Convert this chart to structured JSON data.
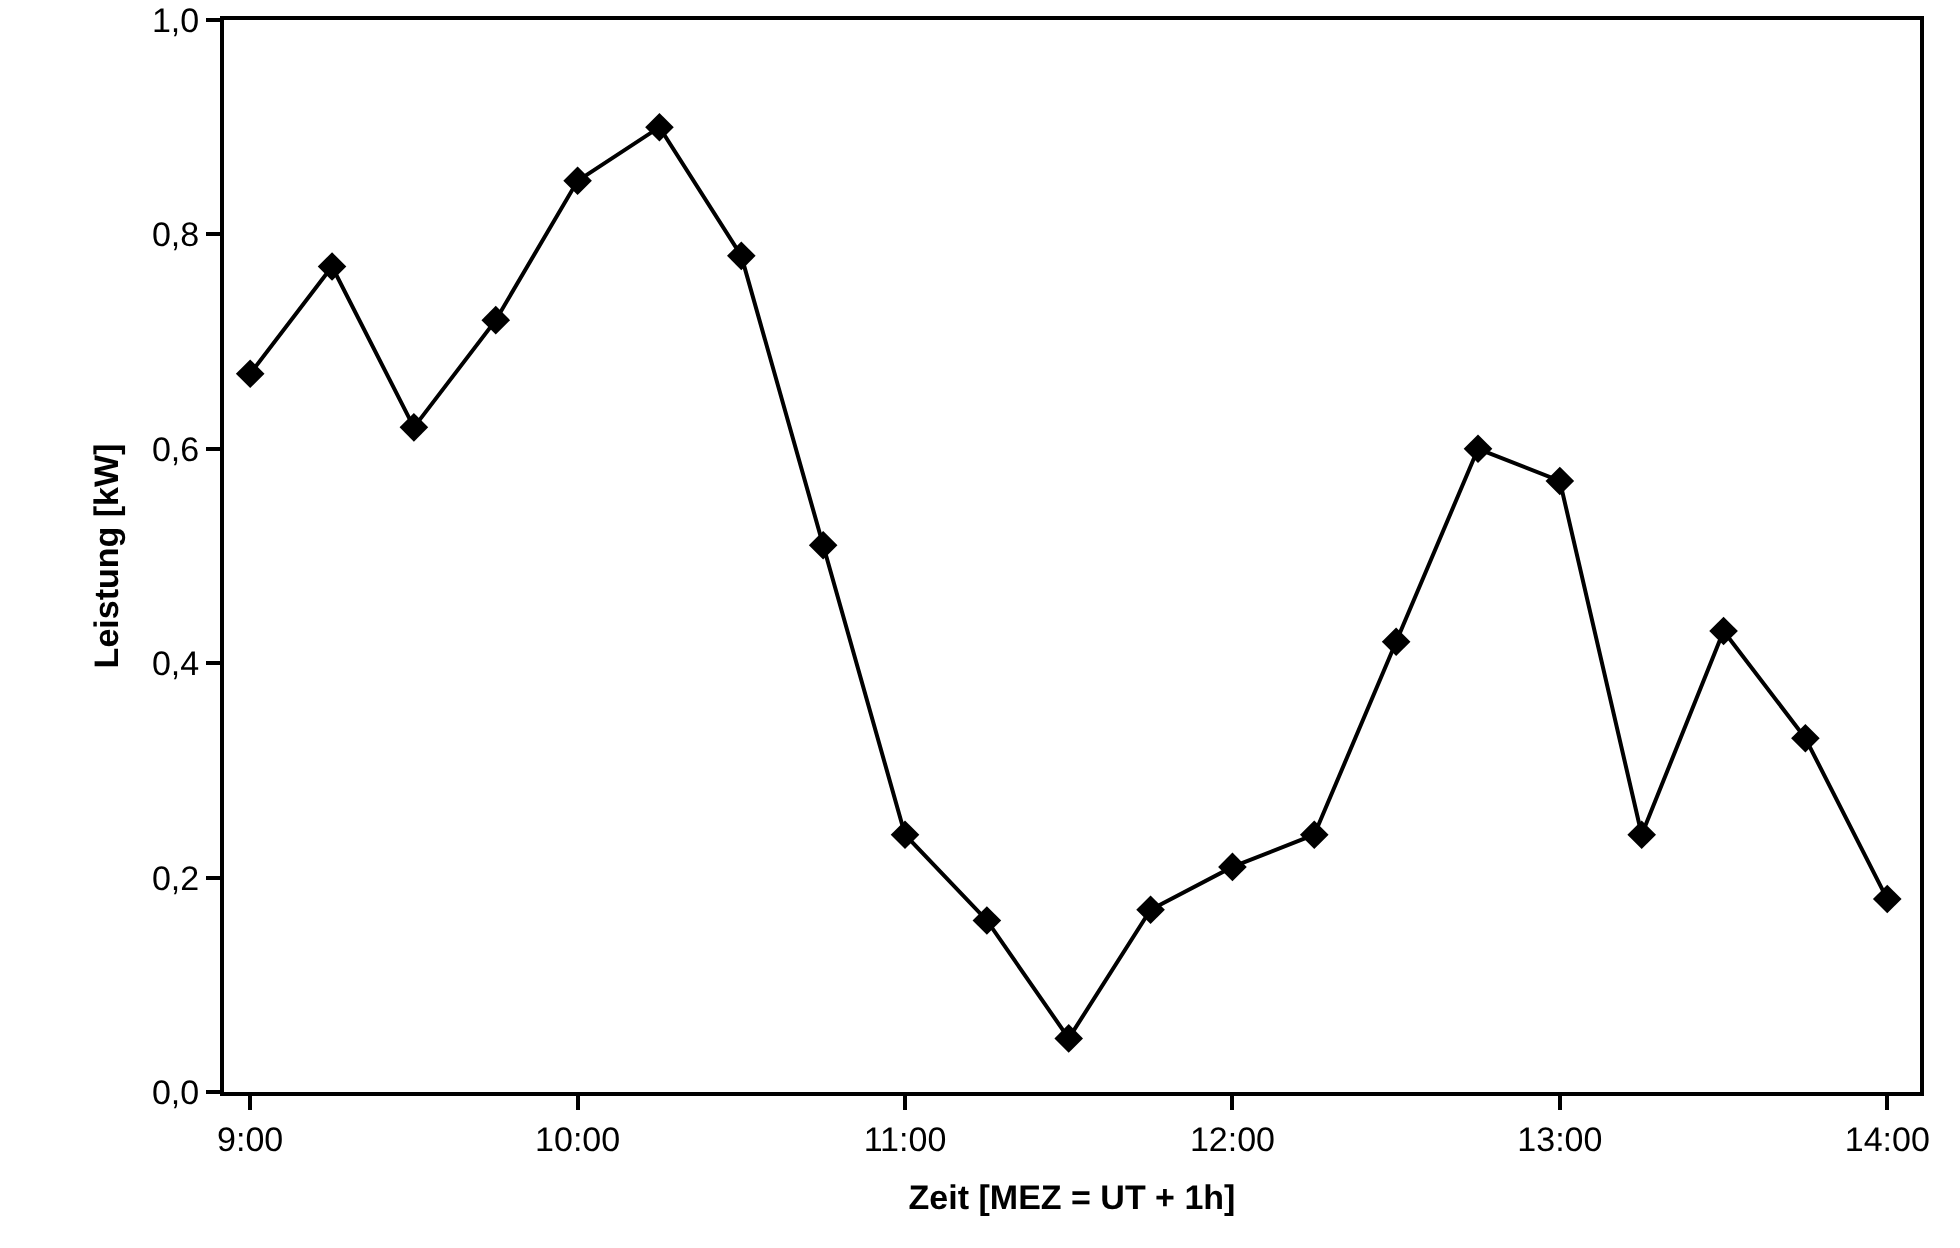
{
  "chart_data": {
    "type": "line",
    "xlabel": "Zeit [MEZ = UT + 1h]",
    "ylabel": "Leistung [kW]",
    "x": [
      9,
      9.25,
      9.5,
      9.75,
      10,
      10.25,
      10.5,
      10.75,
      11,
      11.25,
      11.5,
      11.75,
      12,
      12.25,
      12.5,
      12.75,
      13,
      13.25,
      13.5,
      13.75,
      14
    ],
    "series": [
      {
        "color": "#000000",
        "values": [
          0.67,
          0.77,
          0.62,
          0.72,
          0.85,
          0.9,
          0.78,
          0.51,
          0.24,
          0.16,
          0.05,
          0.17,
          0.21,
          0.24,
          0.42,
          0.6,
          0.57,
          0.24,
          0.43,
          0.33,
          0.18
        ]
      }
    ],
    "xlim": [
      8.92,
      14.1
    ],
    "xticks": [
      {
        "value": 9,
        "label": "9:00"
      },
      {
        "value": 10,
        "label": "10:00"
      },
      {
        "value": 11,
        "label": "11:00"
      },
      {
        "value": 12,
        "label": "12:00"
      },
      {
        "value": 13,
        "label": "13:00"
      },
      {
        "value": 14,
        "label": "14:00"
      }
    ],
    "ylim": [
      0,
      1
    ],
    "yticks": [
      {
        "value": 0,
        "label": "0,0"
      },
      {
        "value": 0.2,
        "label": "0,2"
      },
      {
        "value": 0.4,
        "label": "0,4"
      },
      {
        "value": 0.6,
        "label": "0,6"
      },
      {
        "value": 0.8,
        "label": "0,8"
      },
      {
        "value": 1,
        "label": "1,0"
      }
    ],
    "grid": false,
    "marker": "diamond",
    "line_style": "solid"
  }
}
